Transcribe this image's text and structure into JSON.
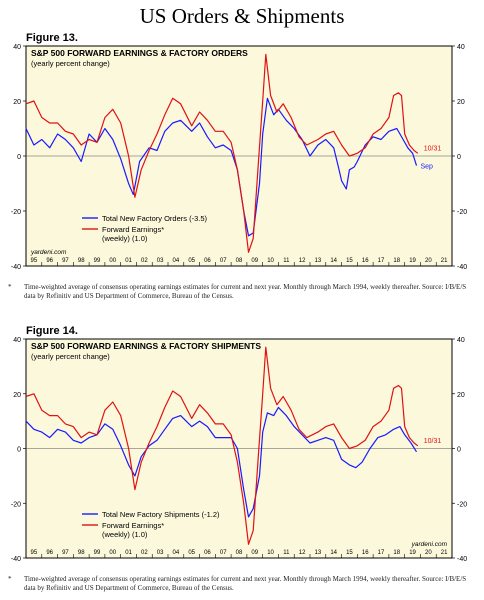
{
  "page": {
    "title": "US Orders & Shipments"
  },
  "colors": {
    "panel_bg": "#fbf8dc",
    "blue": "#1a1aff",
    "red": "#e01212",
    "axis": "#000000"
  },
  "x_tick_labels": [
    "95",
    "96",
    "97",
    "98",
    "99",
    "00",
    "01",
    "02",
    "03",
    "04",
    "05",
    "06",
    "07",
    "08",
    "09",
    "10",
    "11",
    "12",
    "13",
    "14",
    "15",
    "16",
    "17",
    "18",
    "19",
    "20",
    "21"
  ],
  "y_tick_labels": [
    "40",
    "20",
    "0",
    "-20",
    "-40"
  ],
  "charts": [
    {
      "figure_label": "Figure 13.",
      "heading": "S&P 500 FORWARD EARNINGS & FACTORY ORDERS",
      "subheading": "(yearly percent change)",
      "legend": [
        {
          "text": "Total New Factory Orders (-3.5)"
        },
        {
          "text": "Forward Earnings* (weekly) (1.0)"
        }
      ],
      "end_labels": {
        "red": "10/31",
        "blue": "Sep"
      },
      "source": "yardeni.com",
      "footnote": "Time-weighted average of consensus operating earnings estimates for current and next year. Monthly through March 1994, weekly thereafter. Source: I/B/E/S data by Refinitiv and US Department of Commerce, Bureau of the Census."
    },
    {
      "figure_label": "Figure 14.",
      "heading": "S&P 500 FORWARD EARNINGS & FACTORY SHIPMENTS",
      "subheading": "(yearly percent change)",
      "legend": [
        {
          "text": "Total New Factory Shipments (-1.2)"
        },
        {
          "text": "Forward Earnings* (weekly) (1.0)"
        }
      ],
      "end_labels": {
        "red": "10/31"
      },
      "source": "yardeni.com",
      "footnote": "Time-weighted average of consensus operating earnings estimates for current and next year. Monthly through March 1994, weekly thereafter. Source: I/B/E/S data by Refinitiv and US Department of Commerce, Bureau of the Census."
    }
  ],
  "chart_data": [
    {
      "type": "line",
      "title": "S&P 500 FORWARD EARNINGS & FACTORY ORDERS",
      "subtitle": "(yearly percent change)",
      "xlim": [
        1995,
        2022
      ],
      "ylim": [
        -40,
        40
      ],
      "grid": false,
      "legend_position": "bottom-left",
      "series": [
        {
          "name": "Total New Factory Orders (-3.5)",
          "color": "#1a1aff",
          "x": [
            1995.0,
            1995.5,
            1996.0,
            1996.5,
            1997.0,
            1997.5,
            1998.0,
            1998.5,
            1999.0,
            1999.5,
            2000.0,
            2000.5,
            2001.0,
            2001.5,
            2001.8,
            2002.2,
            2002.8,
            2003.3,
            2003.8,
            2004.3,
            2004.8,
            2005.5,
            2006.0,
            2006.5,
            2007.0,
            2007.5,
            2008.0,
            2008.4,
            2008.8,
            2009.1,
            2009.4,
            2009.8,
            2010.0,
            2010.3,
            2010.7,
            2011.0,
            2011.5,
            2012.0,
            2012.5,
            2013.0,
            2013.5,
            2014.0,
            2014.5,
            2014.8,
            2015.0,
            2015.3,
            2015.5,
            2015.8,
            2016.0,
            2016.5,
            2017.0,
            2017.5,
            2018.0,
            2018.5,
            2018.9,
            2019.2,
            2019.5,
            2019.75
          ],
          "y": [
            10,
            4,
            6,
            3,
            8,
            6,
            3,
            -2,
            8,
            5,
            10,
            6,
            -1,
            -10,
            -14,
            -2,
            3,
            2,
            9,
            12,
            13,
            9,
            12,
            7,
            3,
            4,
            2,
            -5,
            -20,
            -29,
            -28,
            -10,
            8,
            21,
            15,
            17,
            13,
            10,
            6,
            0,
            4,
            6,
            3,
            -4,
            -9,
            -12,
            -5,
            -4,
            -2,
            4,
            7,
            6,
            9,
            10,
            6,
            3,
            1,
            -3.5
          ]
        },
        {
          "name": "Forward Earnings* (weekly) (1.0)",
          "color": "#e01212",
          "x": [
            1995.0,
            1995.5,
            1996.0,
            1996.5,
            1997.0,
            1997.5,
            1998.0,
            1998.5,
            1999.0,
            1999.5,
            2000.0,
            2000.5,
            2001.0,
            2001.5,
            2001.9,
            2002.3,
            2002.8,
            2003.3,
            2003.8,
            2004.3,
            2004.8,
            2005.5,
            2006.0,
            2006.5,
            2007.0,
            2007.5,
            2008.0,
            2008.4,
            2008.8,
            2009.1,
            2009.4,
            2009.7,
            2010.0,
            2010.2,
            2010.5,
            2010.9,
            2011.3,
            2011.8,
            2012.3,
            2012.8,
            2013.5,
            2014.0,
            2014.5,
            2015.0,
            2015.5,
            2016.0,
            2016.5,
            2017.0,
            2017.5,
            2018.0,
            2018.3,
            2018.6,
            2018.8,
            2019.0,
            2019.3,
            2019.6,
            2019.83
          ],
          "y": [
            19,
            20,
            14,
            12,
            12,
            9,
            8,
            4,
            6,
            5,
            14,
            17,
            12,
            0,
            -15,
            -5,
            2,
            8,
            15,
            21,
            19,
            11,
            16,
            13,
            9,
            9,
            5,
            -5,
            -20,
            -35,
            -30,
            -5,
            20,
            37,
            22,
            16,
            19,
            14,
            7,
            4,
            6,
            8,
            9,
            4,
            0,
            1,
            3,
            8,
            10,
            14,
            22,
            23,
            22,
            8,
            4,
            2,
            1
          ]
        }
      ]
    },
    {
      "type": "line",
      "title": "S&P 500 FORWARD EARNINGS & FACTORY SHIPMENTS",
      "subtitle": "(yearly percent change)",
      "xlim": [
        1995,
        2022
      ],
      "ylim": [
        -40,
        40
      ],
      "grid": false,
      "legend_position": "bottom-left",
      "series": [
        {
          "name": "Total New Factory Shipments (-1.2)",
          "color": "#1a1aff",
          "x": [
            1995.0,
            1995.5,
            1996.0,
            1996.5,
            1997.0,
            1997.5,
            1998.0,
            1998.5,
            1999.0,
            1999.5,
            2000.0,
            2000.5,
            2001.0,
            2001.5,
            2001.9,
            2002.3,
            2002.8,
            2003.3,
            2003.8,
            2004.3,
            2004.8,
            2005.5,
            2006.0,
            2006.5,
            2007.0,
            2007.5,
            2008.0,
            2008.4,
            2008.8,
            2009.1,
            2009.4,
            2009.8,
            2010.0,
            2010.3,
            2010.7,
            2011.0,
            2011.5,
            2012.0,
            2012.5,
            2013.0,
            2013.5,
            2014.0,
            2014.5,
            2015.0,
            2015.5,
            2015.9,
            2016.3,
            2016.8,
            2017.3,
            2017.8,
            2018.3,
            2018.7,
            2019.0,
            2019.4,
            2019.75
          ],
          "y": [
            10,
            7,
            6,
            4,
            7,
            6,
            3,
            2,
            4,
            5,
            9,
            7,
            1,
            -6,
            -10,
            -3,
            1,
            3,
            7,
            11,
            12,
            8,
            10,
            8,
            4,
            4,
            4,
            0,
            -15,
            -25,
            -22,
            -10,
            6,
            13,
            12,
            15,
            12,
            8,
            5,
            2,
            3,
            4,
            3,
            -4,
            -6,
            -7,
            -5,
            0,
            4,
            5,
            7,
            8,
            5,
            2,
            -1.2
          ]
        },
        {
          "name": "Forward Earnings* (weekly) (1.0)",
          "color": "#e01212",
          "x": [
            1995.0,
            1995.5,
            1996.0,
            1996.5,
            1997.0,
            1997.5,
            1998.0,
            1998.5,
            1999.0,
            1999.5,
            2000.0,
            2000.5,
            2001.0,
            2001.5,
            2001.9,
            2002.3,
            2002.8,
            2003.3,
            2003.8,
            2004.3,
            2004.8,
            2005.5,
            2006.0,
            2006.5,
            2007.0,
            2007.5,
            2008.0,
            2008.4,
            2008.8,
            2009.1,
            2009.4,
            2009.7,
            2010.0,
            2010.2,
            2010.5,
            2010.9,
            2011.3,
            2011.8,
            2012.3,
            2012.8,
            2013.5,
            2014.0,
            2014.5,
            2015.0,
            2015.5,
            2016.0,
            2016.5,
            2017.0,
            2017.5,
            2018.0,
            2018.3,
            2018.6,
            2018.8,
            2019.0,
            2019.3,
            2019.6,
            2019.83
          ],
          "y": [
            19,
            20,
            14,
            12,
            12,
            9,
            8,
            4,
            6,
            5,
            14,
            17,
            12,
            0,
            -15,
            -5,
            2,
            8,
            15,
            21,
            19,
            11,
            16,
            13,
            9,
            9,
            5,
            -5,
            -20,
            -35,
            -30,
            -5,
            20,
            37,
            22,
            16,
            19,
            14,
            7,
            4,
            6,
            8,
            9,
            4,
            0,
            1,
            3,
            8,
            10,
            14,
            22,
            23,
            22,
            8,
            4,
            2,
            1
          ]
        }
      ]
    }
  ]
}
